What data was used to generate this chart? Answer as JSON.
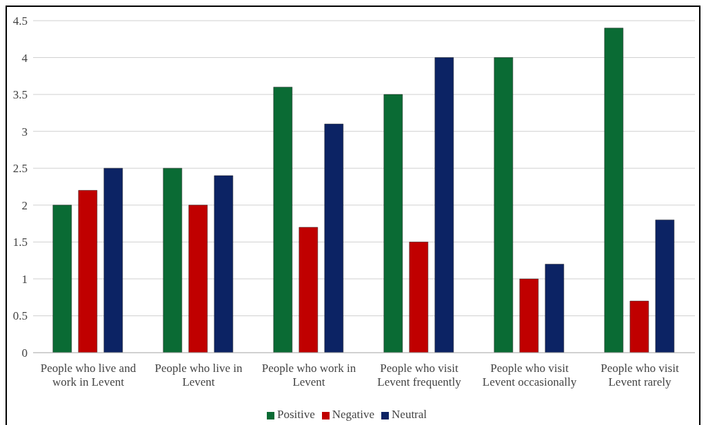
{
  "chart_data": {
    "type": "bar",
    "categories": [
      "People who live and work in Levent",
      "People who live in Levent",
      "People who work in Levent",
      "People who visit Levent frequently",
      "People who visit Levent occasionally",
      "People who visit Levent rarely"
    ],
    "series": [
      {
        "name": "Positive",
        "color": "#0a6b34",
        "values": [
          2,
          2.5,
          3.6,
          3.5,
          4,
          4.4
        ]
      },
      {
        "name": "Negative",
        "color": "#c00000",
        "values": [
          2.2,
          2,
          1.7,
          1.5,
          1,
          0.7
        ]
      },
      {
        "name": "Neutral",
        "color": "#0c2364",
        "values": [
          2.5,
          2.4,
          3.1,
          4,
          1.2,
          1.8
        ]
      }
    ],
    "ylim": [
      0,
      4.5
    ],
    "yticks": [
      0,
      0.5,
      1,
      1.5,
      2,
      2.5,
      3,
      3.5,
      4,
      4.5
    ],
    "grid": "y",
    "legend": "bottom"
  }
}
